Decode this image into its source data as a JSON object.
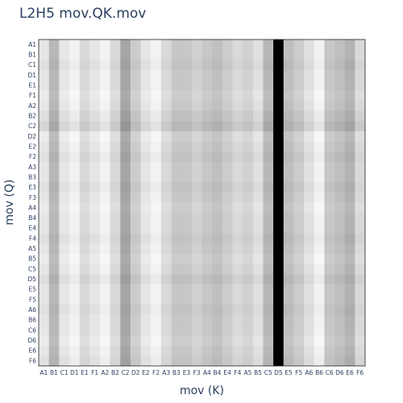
{
  "chart_data": {
    "type": "heatmap",
    "title": "L2H5 mov.QK.mov",
    "xlabel": "mov (K)",
    "ylabel": "mov (Q)",
    "x_categories": [
      "A1",
      "B1",
      "C1",
      "D1",
      "E1",
      "F1",
      "A2",
      "B2",
      "C2",
      "D2",
      "E2",
      "F2",
      "A3",
      "B3",
      "E3",
      "F3",
      "A4",
      "B4",
      "E4",
      "F4",
      "A5",
      "B5",
      "C5",
      "D5",
      "E5",
      "F5",
      "A6",
      "B6",
      "C6",
      "D6",
      "E6",
      "F6"
    ],
    "y_categories": [
      "A1",
      "B1",
      "C1",
      "D1",
      "E1",
      "F1",
      "A2",
      "B2",
      "C2",
      "D2",
      "E2",
      "F2",
      "A3",
      "B3",
      "E3",
      "F3",
      "A4",
      "B4",
      "E4",
      "F4",
      "A5",
      "B5",
      "C5",
      "D5",
      "E5",
      "F5",
      "A6",
      "B6",
      "C6",
      "D6",
      "E6",
      "F6"
    ],
    "column_intensity": [
      0.1,
      0.28,
      0.1,
      0.05,
      0.15,
      0.1,
      0.05,
      0.15,
      0.35,
      0.2,
      0.1,
      0.05,
      0.15,
      0.22,
      0.22,
      0.18,
      0.22,
      0.25,
      0.2,
      0.15,
      0.18,
      0.12,
      0.28,
      1.0,
      0.25,
      0.2,
      0.12,
      0.05,
      0.22,
      0.25,
      0.3,
      0.15
    ],
    "row_offsets": [
      0,
      0,
      0.02,
      0,
      0,
      -0.02,
      0,
      0.03,
      0.06,
      -0.02,
      0,
      0.02,
      0,
      0,
      0.02,
      0,
      -0.02,
      0,
      0,
      0.02,
      0,
      -0.02,
      0,
      0.03,
      0,
      0,
      0.02,
      0,
      0,
      -0.02,
      0,
      0.02
    ],
    "colorscale": [
      "#ffffff",
      "#000000"
    ]
  }
}
